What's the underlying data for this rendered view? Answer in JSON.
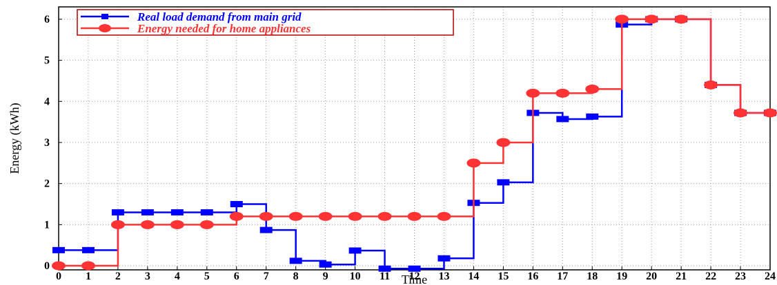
{
  "chart_data": {
    "type": "line",
    "step": true,
    "xlabel": "Time",
    "ylabel": "Energy (kWh)",
    "x_ticks": [
      0,
      1,
      2,
      3,
      4,
      5,
      6,
      7,
      8,
      9,
      10,
      11,
      12,
      13,
      14,
      15,
      16,
      17,
      18,
      19,
      20,
      21,
      22,
      23,
      24
    ],
    "y_ticks": [
      0,
      1,
      2,
      3,
      4,
      5,
      6
    ],
    "xlim": [
      0,
      24
    ],
    "ylim": [
      -0.1,
      6.3
    ],
    "grid": true,
    "legend_position": "top-left",
    "series": [
      {
        "name": "Real load demand from main grid",
        "color": "#0000ff",
        "marker": "square",
        "x": [
          0,
          1,
          2,
          3,
          4,
          5,
          6,
          7,
          8,
          9,
          10,
          11,
          12,
          13,
          14,
          15,
          16,
          17,
          18,
          19,
          20,
          21,
          22,
          23,
          24
        ],
        "y": [
          0.38,
          0.38,
          1.3,
          1.3,
          1.3,
          1.3,
          1.5,
          0.87,
          0.12,
          0.03,
          0.37,
          -0.07,
          -0.07,
          0.18,
          1.53,
          2.03,
          3.72,
          3.57,
          3.63,
          5.87,
          6.0,
          6.0,
          4.4,
          3.72,
          3.72
        ]
      },
      {
        "name": "Energy needed for home appliances",
        "color": "#ff3333",
        "marker": "circle",
        "x": [
          0,
          1,
          2,
          3,
          4,
          5,
          6,
          7,
          8,
          9,
          10,
          11,
          12,
          13,
          14,
          15,
          16,
          17,
          18,
          19,
          20,
          21,
          22,
          23,
          24
        ],
        "y": [
          0.0,
          0.0,
          1.0,
          1.0,
          1.0,
          1.0,
          1.2,
          1.2,
          1.2,
          1.2,
          1.2,
          1.2,
          1.2,
          1.2,
          2.5,
          3.0,
          4.2,
          4.2,
          4.3,
          6.0,
          6.0,
          6.0,
          4.4,
          3.72,
          3.72
        ]
      }
    ]
  }
}
